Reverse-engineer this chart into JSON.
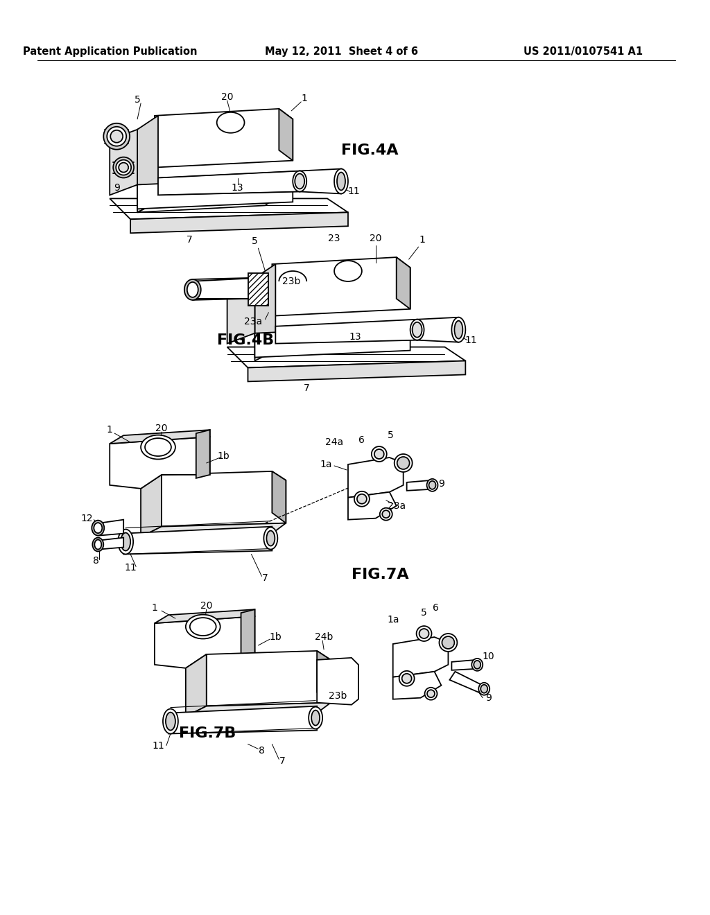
{
  "background_color": "#ffffff",
  "header_left": "Patent Application Publication",
  "header_center": "May 12, 2011  Sheet 4 of 6",
  "header_right": "US 2011/0107541 A1",
  "fig4a_label": "FIG.4A",
  "fig4b_label": "FIG.4B",
  "fig7a_label": "FIG.7A",
  "fig7b_label": "FIG.7B",
  "header_fontsize": 10.5,
  "label_fontsize": 16,
  "ref_fontsize": 10,
  "line_lw": 1.3
}
